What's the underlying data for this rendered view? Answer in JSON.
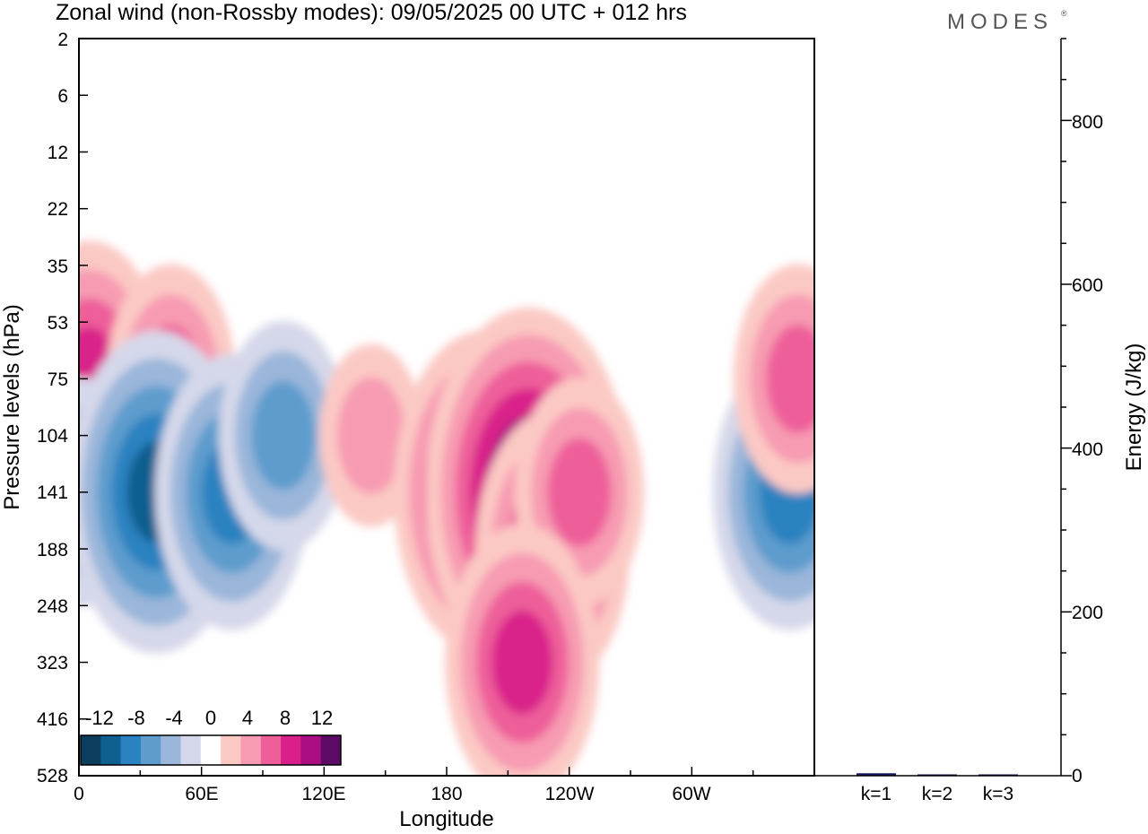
{
  "header": {
    "title": "Zonal wind (non-Rossby modes):  09/05/2025  00 UTC  + 012 hrs",
    "brand": "MODES",
    "brand_mark": "®"
  },
  "colors": {
    "negative": [
      "#0b3d5e",
      "#0f5f8f",
      "#2b82c0",
      "#5d9ccd",
      "#9ab6da",
      "#d5d8ea"
    ],
    "zero": "#ffffff",
    "positive": [
      "#fbc9c4",
      "#f79bb2",
      "#ee5f9a",
      "#d9208a",
      "#ab0e83",
      "#5d0a67"
    ],
    "bar": "#1a1a66"
  },
  "chart_data": [
    {
      "type": "heatmap",
      "description_variable": "zonal wind",
      "xlabel": "Longitude",
      "ylabel": "Pressure levels (hPa)",
      "x_ticks": [
        "0",
        "60E",
        "120E",
        "180",
        "120W",
        "60W"
      ],
      "y_ticks": [
        "2",
        "6",
        "12",
        "22",
        "35",
        "53",
        "75",
        "104",
        "141",
        "188",
        "248",
        "323",
        "416",
        "528"
      ],
      "colorbar": {
        "labels": [
          "-12",
          "-8",
          "-4",
          "0",
          "4",
          "8",
          "12"
        ],
        "levels": [
          -14,
          -12,
          -10,
          -8,
          -6,
          -4,
          -2,
          2,
          4,
          6,
          8,
          10,
          12,
          14
        ]
      },
      "features": [
        {
          "lon": 5,
          "level": "75",
          "value": 9
        },
        {
          "lon": 45,
          "level": "75",
          "value": 6
        },
        {
          "lon": 0,
          "level": "141",
          "value": -6
        },
        {
          "lon": 38,
          "level": "141",
          "value": -10
        },
        {
          "lon": 75,
          "level": "141",
          "value": -9
        },
        {
          "lon": 100,
          "level": "104",
          "value": -6
        },
        {
          "lon": 143,
          "level": "104",
          "value": 5
        },
        {
          "lon": 198,
          "level": "141",
          "value": 11
        },
        {
          "lon": 220,
          "level": "141",
          "value": 12
        },
        {
          "lon": 232,
          "level": "188",
          "value": 8
        },
        {
          "lon": 245,
          "level": "141",
          "value": 7
        },
        {
          "lon": 217,
          "level": "323",
          "value": 8
        },
        {
          "lon": 348,
          "level": "141",
          "value": -9
        },
        {
          "lon": 352,
          "level": "75",
          "value": 6
        }
      ]
    },
    {
      "type": "bar",
      "categories": [
        "k=1",
        "k=2",
        "k=3"
      ],
      "values": [
        3,
        1.5,
        1
      ],
      "ylabel": "Energy (J/kg)",
      "ylim": [
        0,
        900
      ],
      "y_ticks": [
        "0",
        "200",
        "400",
        "600",
        "800"
      ]
    }
  ]
}
